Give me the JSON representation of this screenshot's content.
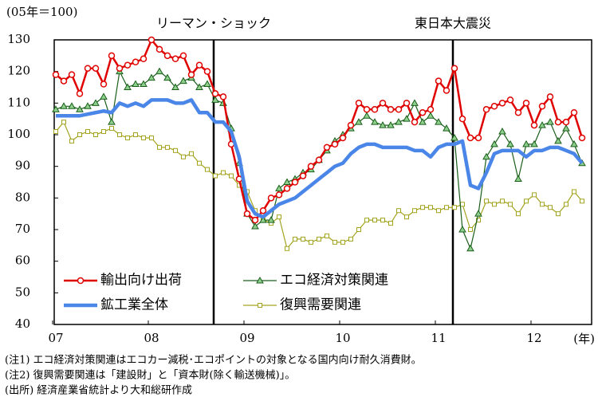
{
  "chart_data": {
    "type": "line",
    "y_unit_label": "(05年＝100)",
    "x_unit_label": "(年)",
    "categories": [
      "07",
      null,
      null,
      null,
      null,
      null,
      null,
      null,
      null,
      null,
      null,
      null,
      "08",
      null,
      null,
      null,
      null,
      null,
      null,
      null,
      null,
      null,
      null,
      null,
      "09",
      null,
      null,
      null,
      null,
      null,
      null,
      null,
      null,
      null,
      null,
      null,
      "10",
      null,
      null,
      null,
      null,
      null,
      null,
      null,
      null,
      null,
      null,
      null,
      "11",
      null,
      null,
      null,
      null,
      null,
      null,
      null,
      null,
      null,
      null,
      null,
      "12",
      null,
      null,
      null,
      null,
      null,
      null
    ],
    "ylim": [
      40,
      130
    ],
    "yticks": [
      40,
      50,
      60,
      70,
      80,
      90,
      100,
      110,
      120,
      130
    ],
    "annotations": [
      {
        "text": "リーマン・ショック",
        "at": 20
      },
      {
        "text": "東日本大震災",
        "at": 50
      }
    ],
    "series": [
      {
        "name": "輸出向け出荷",
        "color": "#e00000",
        "marker": "circle",
        "values": [
          119,
          117,
          119,
          113,
          121,
          121,
          116,
          125,
          121,
          122,
          123,
          124,
          130,
          127,
          125,
          124,
          125,
          119,
          122,
          120,
          113,
          112,
          97,
          86,
          75,
          73,
          76,
          80,
          81,
          83,
          85,
          87,
          90,
          92,
          96,
          97,
          99,
          103,
          110,
          108,
          108,
          110,
          108,
          108,
          110,
          104,
          107,
          108,
          117,
          114,
          121,
          105,
          99,
          99,
          108,
          109,
          110,
          111,
          107,
          110,
          103,
          109,
          112,
          104,
          104,
          107,
          99
        ]
      },
      {
        "name": "エコ経済対策関連",
        "color": "#1a5e1a",
        "marker": "triangle",
        "values": [
          108,
          109,
          109,
          108,
          109,
          110,
          112,
          104,
          120,
          115,
          116,
          116,
          118,
          120,
          118,
          115,
          117,
          118,
          115,
          116,
          111,
          110,
          102,
          91,
          75,
          71,
          73,
          73,
          83,
          85,
          86,
          88,
          89,
          92,
          95,
          98,
          100,
          102,
          104,
          106,
          104,
          103,
          103,
          104,
          105,
          110,
          104,
          106,
          104,
          102,
          99,
          70,
          64,
          75,
          93,
          97,
          101,
          97,
          86,
          97,
          97,
          103,
          104,
          98,
          102,
          97,
          91
        ]
      },
      {
        "name": "鉱工業全体",
        "color": "#4a86e8",
        "marker": "none",
        "values": [
          106,
          106,
          106,
          106,
          106.5,
          107,
          107.5,
          107,
          110,
          109,
          110,
          109,
          111,
          111,
          111,
          110,
          110,
          111,
          107,
          107,
          104,
          104,
          101,
          93,
          79,
          75,
          74,
          76,
          78,
          79,
          80,
          82,
          84,
          86,
          88,
          90,
          91,
          94,
          96,
          97,
          97,
          96,
          96,
          96,
          96,
          95,
          95,
          93,
          96,
          97,
          97,
          98,
          84,
          83,
          88,
          94,
          95,
          95,
          95,
          93,
          95,
          95,
          96,
          96,
          95,
          94,
          91
        ]
      },
      {
        "name": "復興需要関連",
        "color": "#a3a320",
        "marker": "square",
        "values": [
          101,
          104,
          98,
          100,
          101,
          100,
          101,
          102,
          100,
          99,
          100,
          99,
          99,
          96,
          96,
          95,
          93,
          94,
          91,
          89,
          87,
          88,
          87,
          84,
          82,
          76,
          73,
          72,
          74,
          64,
          67,
          67,
          66,
          67,
          68,
          66,
          66,
          67,
          70,
          73,
          73,
          73,
          72,
          76,
          74,
          76,
          77,
          77,
          76,
          77,
          77,
          78,
          70,
          73,
          79,
          78,
          79,
          78,
          75,
          79,
          81,
          78,
          77,
          75,
          78,
          82,
          79
        ]
      }
    ],
    "notes": [
      "(注1) エコ経済対策関連はエコカー減税･エコポイントの対象となる国内向け耐久消費財。",
      "(注2) 復興需要関連は「建設財」と「資本財(除く輸送機械)」。",
      "(出所) 経済産業省統計より大和総研作成"
    ]
  }
}
